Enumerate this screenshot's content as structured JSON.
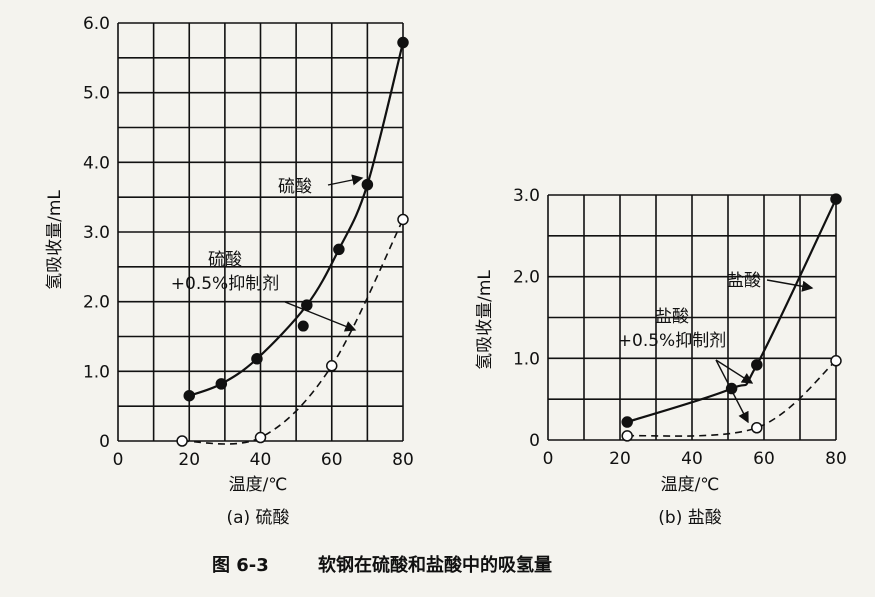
{
  "figure_caption": {
    "number": "图 6-3",
    "text": "软钢在硫酸和盐酸中的吸氢量"
  },
  "chart_data": [
    {
      "type": "line",
      "panel_caption": "(a) 硫酸",
      "xlabel": "温度/℃",
      "ylabel": "氢吸收量/mL",
      "xlim": [
        0,
        80
      ],
      "ylim": [
        0,
        6.0
      ],
      "x_tick_labels": [
        "0",
        "20",
        "40",
        "60",
        "80"
      ],
      "y_tick_labels": [
        "0",
        "1.0",
        "2.0",
        "3.0",
        "4.0",
        "5.0",
        "6.0"
      ],
      "grid": true,
      "series": [
        {
          "name": "硫酸",
          "style": "solid-filled",
          "x": [
            20,
            29,
            39,
            53,
            62,
            70,
            80
          ],
          "y": [
            0.65,
            0.82,
            1.18,
            1.95,
            2.75,
            3.68,
            5.72
          ]
        },
        {
          "name": "硫酸\n+0.5%抑制剂",
          "style": "dashed-open",
          "x": [
            18,
            40,
            60,
            80
          ],
          "y": [
            0.0,
            0.05,
            1.08,
            3.18
          ]
        }
      ],
      "extra_points": [
        {
          "x": 52,
          "y": 1.65,
          "marker": "filled"
        }
      ],
      "annotations": [
        {
          "text": "硫酸",
          "series": 0
        },
        {
          "line1": "硫酸",
          "line2": "+0.5%抑制剂",
          "series": 1
        }
      ]
    },
    {
      "type": "line",
      "panel_caption": "(b) 盐酸",
      "xlabel": "温度/℃",
      "ylabel": "氢吸收量/mL",
      "xlim": [
        0,
        80
      ],
      "ylim": [
        0,
        3.0
      ],
      "x_tick_labels": [
        "0",
        "20",
        "40",
        "60",
        "80"
      ],
      "y_tick_labels": [
        "0",
        "1.0",
        "2.0",
        "3.0"
      ],
      "grid": true,
      "series": [
        {
          "name": "盐酸",
          "style": "solid-filled",
          "x": [
            22,
            51,
            58,
            80
          ],
          "y": [
            0.22,
            0.63,
            0.92,
            2.95
          ]
        },
        {
          "name": "盐酸\n+0.5%抑制剂",
          "style": "dashed-open",
          "x": [
            22,
            58,
            80
          ],
          "y": [
            0.05,
            0.15,
            0.97
          ]
        }
      ],
      "annotations": [
        {
          "text": "盐酸",
          "series": 0
        },
        {
          "line1": "盐酸",
          "line2": "+0.5%抑制剂",
          "series": 1
        }
      ]
    }
  ]
}
